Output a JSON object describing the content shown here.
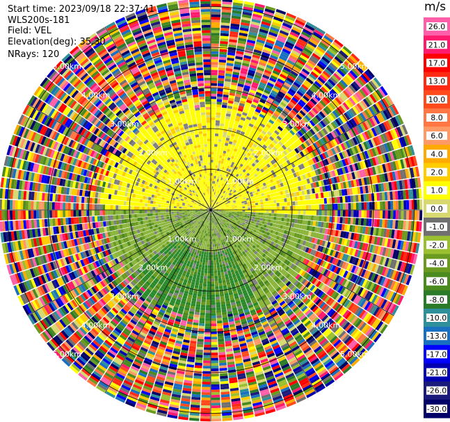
{
  "info": {
    "start_time": "Start time: 2023/09/18 22:37:41",
    "instrument": "WLS200s-181",
    "field": "Field: VEL",
    "elevation": "Elevation(deg): 35.30",
    "nrays": "NRays: 120"
  },
  "colorbar": {
    "unit": "m/s",
    "ticks": [
      "26.0",
      "21.0",
      "17.0",
      "13.0",
      "10.0",
      "8.0",
      "6.0",
      "4.0",
      "2.0",
      "1.0",
      "0.0",
      "-1.0",
      "-2.0",
      "-4.0",
      "-6.0",
      "-8.0",
      "-10.0",
      "-13.0",
      "-17.0",
      "-21.0",
      "-26.0",
      "-30.0"
    ],
    "colors": [
      "#ff5fa8",
      "#ff1a6e",
      "#ff0000",
      "#ff2a14",
      "#ff4a1c",
      "#ff7744",
      "#ff9966",
      "#ffaa00",
      "#ffcc00",
      "#ffff00",
      "#d8d870",
      "#707070",
      "#9ac032",
      "#6a9b20",
      "#4a8a1e",
      "#2a7a2a",
      "#2f8f9a",
      "#1a70c0",
      "#0000ff",
      "#0000b0",
      "#1a1a7a",
      "#000066"
    ]
  },
  "chart_data": {
    "type": "ppi",
    "field": "VEL",
    "unit": "m/s",
    "nrays": 120,
    "elevation_deg": 35.3,
    "range_rings_km": [
      1.0,
      2.0,
      3.0,
      4.0,
      5.0
    ],
    "ring_labels": [
      "1.00km",
      "2.00km",
      "3.00km",
      "4.00km",
      "5.00km"
    ],
    "max_range_km": 5.2,
    "sectors": [
      {
        "azimuth_range": [
          270,
          90
        ],
        "region": "north",
        "dominant_values_m_s": [
          2.0,
          4.0
        ],
        "dominant_color": "yellow",
        "range_km": [
          0,
          2.8
        ]
      },
      {
        "azimuth_range": [
          90,
          270
        ],
        "region": "south",
        "dominant_values_m_s": [
          -2.0,
          -6.0
        ],
        "dominant_color": "green",
        "range_km": [
          0,
          2.8
        ]
      },
      {
        "azimuth_range": [
          0,
          360
        ],
        "region": "outer",
        "dominant_values_m_s": "noise (all bins)",
        "range_km": [
          2.8,
          5.2
        ]
      }
    ]
  }
}
